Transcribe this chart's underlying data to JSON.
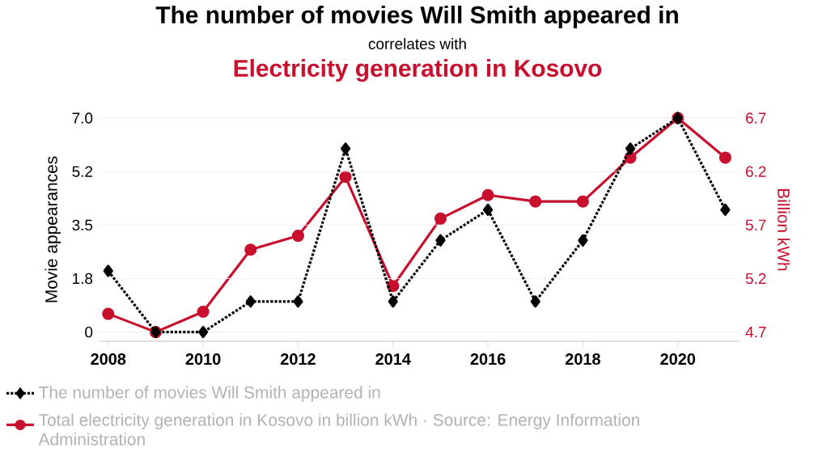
{
  "chart_data": {
    "type": "line",
    "title": "The number of movies Will Smith appeared in",
    "subtitle": "correlates with",
    "annotations": [
      "Electricity generation in Kosovo"
    ],
    "ylabel": "Movie appearances",
    "y2label": "Billion kWh",
    "x": [
      2008,
      2009,
      2010,
      2011,
      2012,
      2013,
      2014,
      2015,
      2016,
      2017,
      2018,
      2019,
      2020,
      2021
    ],
    "xlim": [
      2007.8,
      2021.3
    ],
    "xticks": [
      2008,
      2010,
      2012,
      2014,
      2016,
      2018,
      2020
    ],
    "ylim": [
      -0.3,
      7
    ],
    "yticks": [
      0,
      {
        "value": 1.75,
        "label": "1.8"
      },
      3.5,
      {
        "value": 5.25,
        "label": "5.2"
      },
      {
        "value": 7,
        "label": "7.0"
      }
    ],
    "y2lim": [
      4.614,
      6.7
    ],
    "y2ticks": [
      4.7,
      5.2,
      5.7,
      6.2,
      6.7
    ],
    "grid": "y",
    "legend": "bottom",
    "series": [
      {
        "name": "The number of movies Will Smith appeared in",
        "color": "#000000",
        "marker": "diamond",
        "line_style": "dotted",
        "values": [
          2,
          0,
          0,
          1,
          1,
          6,
          1,
          3,
          4,
          1,
          3,
          6,
          7,
          4
        ]
      },
      {
        "name": "Total electricity generation in Kosovo in billion kWh · Source: Energy Information Administration",
        "color": "#c8102e",
        "marker": "circle",
        "line_style": "solid",
        "axis": "y2",
        "values": [
          4.87,
          4.7,
          4.89,
          5.47,
          5.6,
          6.15,
          5.13,
          5.76,
          5.98,
          5.92,
          5.92,
          6.33,
          6.7,
          6.33
        ]
      }
    ]
  }
}
